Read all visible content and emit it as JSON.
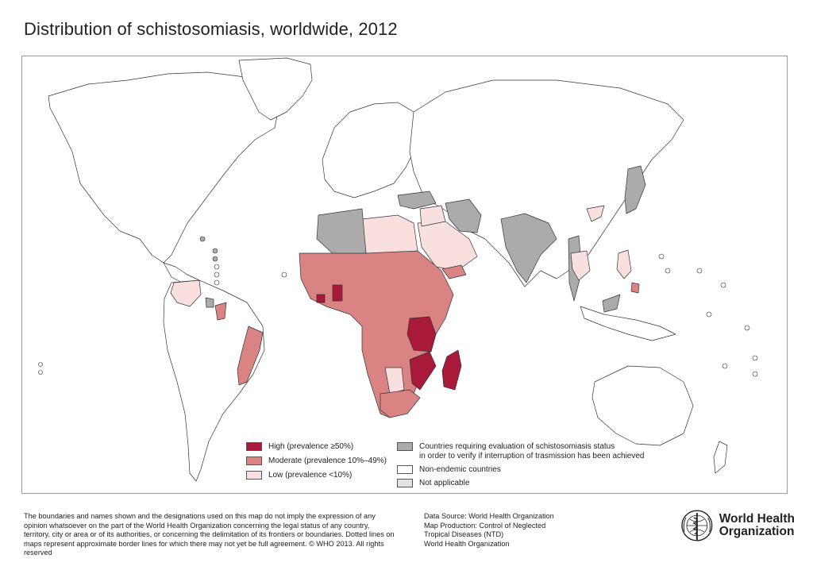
{
  "title": "Distribution of schistosomiasis, worldwide, 2012",
  "colors": {
    "high": "#a8193a",
    "moderate": "#d98383",
    "low": "#f9e0df",
    "evaluation": "#ababab",
    "non_endemic": "#ffffff",
    "not_applicable": "#e3e3e3",
    "border": "#333333"
  },
  "legend": {
    "high": "High (prevalence ≥50%)",
    "moderate": "Moderate (prevalence 10%–49%)",
    "low": "Low (prevalence <10%)",
    "evaluation_line1": "Countries requiring evaluation of schistosomiasis status",
    "evaluation_line2": "in order to verify if interruption of trasmission has been achieved",
    "non_endemic": "Non-endemic countries",
    "not_applicable": "Not applicable"
  },
  "disclaimer": "The boundaries and names shown and the designations used on this map do not imply the expression of any opinion whatsoever on the part of the World Health Organization concerning the legal status of any country, territory, city or area or of its authorities, or concerning the delimitation of its frontiers or boundaries. Dotted lines on maps represent approximate border lines for which there may not yet be full agreement. © WHO 2013. All rights reserved",
  "source": {
    "line1": "Data Source: World Health Organization",
    "line2": "Map Production: Control of Neglected",
    "line3": "Tropical Diseases (NTD)",
    "line4": "World Health Organization"
  },
  "logo": {
    "line1": "World Health",
    "line2": "Organization",
    "icon": "who-emblem-icon"
  }
}
